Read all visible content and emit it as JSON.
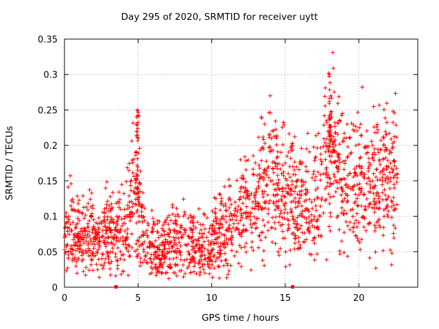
{
  "chart_data": {
    "type": "scatter",
    "title": "Day 295 of 2020, SRMTID for receiver uytt",
    "xlabel": "GPS time / hours",
    "ylabel": "SRMTID / TECUs",
    "xlim": [
      0,
      24
    ],
    "ylim": [
      0,
      0.35
    ],
    "xticks": [
      0,
      5,
      10,
      15,
      20
    ],
    "yticks": [
      0,
      0.05,
      0.1,
      0.15,
      0.2,
      0.25,
      0.3,
      0.35
    ],
    "grid": true,
    "marker": "+",
    "color": "#ff0000",
    "series": [
      {
        "name": "SRMTID",
        "x": [
          0.0,
          0.1,
          0.2,
          0.3,
          0.4,
          0.5,
          0.6,
          0.7,
          0.8,
          0.9,
          1.0,
          1.2,
          1.4,
          1.6,
          1.8,
          2.0,
          2.2,
          2.4,
          2.6,
          2.8,
          3.0,
          3.2,
          3.4,
          3.6,
          3.8,
          4.0,
          4.2,
          4.4,
          4.6,
          4.8,
          4.85,
          4.9,
          4.95,
          5.0,
          5.05,
          5.1,
          5.2,
          5.4,
          5.6,
          5.8,
          6.0,
          6.2,
          6.4,
          6.6,
          6.8,
          7.0,
          7.2,
          7.4,
          7.6,
          7.8,
          8.0,
          8.2,
          8.4,
          8.6,
          8.8,
          9.0,
          9.2,
          9.4,
          9.6,
          9.8,
          10.0,
          10.2,
          10.4,
          10.6,
          10.8,
          11.0,
          11.2,
          11.4,
          11.6,
          11.8,
          12.0,
          12.2,
          12.4,
          12.6,
          12.8,
          13.0,
          13.2,
          13.4,
          13.6,
          13.8,
          14.0,
          14.2,
          14.4,
          14.6,
          14.8,
          15.0,
          15.2,
          15.4,
          15.6,
          15.8,
          16.0,
          16.2,
          16.4,
          16.6,
          16.8,
          17.0,
          17.2,
          17.4,
          17.6,
          17.8,
          17.9,
          18.0,
          18.1,
          18.2,
          18.4,
          18.6,
          18.8,
          19.0,
          19.2,
          19.4,
          19.6,
          19.8,
          20.0,
          20.2,
          20.4,
          20.6,
          20.8,
          21.0,
          21.2,
          21.4,
          21.6,
          21.8,
          22.0,
          22.2,
          22.4,
          22.6
        ],
        "y": [
          0.07,
          0.09,
          0.06,
          0.1,
          0.05,
          0.08,
          0.12,
          0.07,
          0.06,
          0.09,
          0.05,
          0.07,
          0.08,
          0.06,
          0.1,
          0.07,
          0.05,
          0.09,
          0.08,
          0.06,
          0.07,
          0.11,
          0.06,
          0.08,
          0.05,
          0.09,
          0.07,
          0.12,
          0.1,
          0.14,
          0.19,
          0.23,
          0.25,
          0.21,
          0.12,
          0.07,
          0.06,
          0.05,
          0.08,
          0.04,
          0.06,
          0.05,
          0.07,
          0.04,
          0.06,
          0.05,
          0.08,
          0.04,
          0.06,
          0.05,
          0.07,
          0.06,
          0.05,
          0.08,
          0.04,
          0.06,
          0.05,
          0.07,
          0.04,
          0.06,
          0.05,
          0.08,
          0.07,
          0.09,
          0.06,
          0.08,
          0.1,
          0.07,
          0.12,
          0.09,
          0.11,
          0.08,
          0.13,
          0.1,
          0.12,
          0.09,
          0.14,
          0.11,
          0.23,
          0.13,
          0.15,
          0.12,
          0.21,
          0.1,
          0.14,
          0.11,
          0.16,
          0.12,
          0.09,
          0.15,
          0.13,
          0.1,
          0.17,
          0.08,
          0.12,
          0.07,
          0.14,
          0.18,
          0.16,
          0.2,
          0.22,
          0.3,
          0.27,
          0.19,
          0.15,
          0.17,
          0.13,
          0.21,
          0.12,
          0.16,
          0.1,
          0.2,
          0.13,
          0.17,
          0.11,
          0.19,
          0.14,
          0.16,
          0.12,
          0.18,
          0.15,
          0.13,
          0.17,
          0.19,
          0.14,
          0.16
        ],
        "density_note": "the original plot shows ~2000 scattered points; the script draws a dense cloud around this representative envelope"
      }
    ],
    "bottom_markers_x": [
      3.5,
      15.5
    ]
  }
}
